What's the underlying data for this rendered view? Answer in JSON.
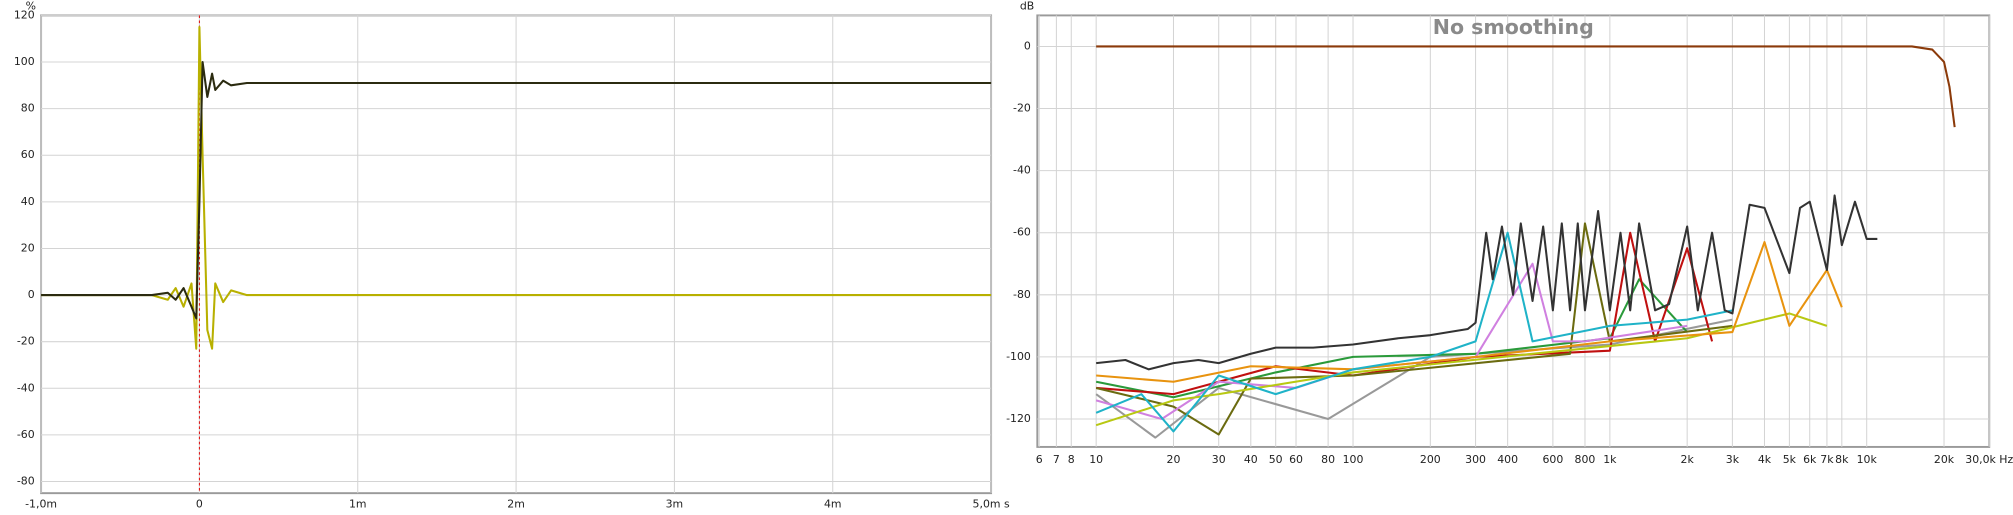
{
  "chart_data": [
    {
      "type": "line",
      "ylabel": "%",
      "xlim": [
        -1,
        5
      ],
      "ylim": [
        -85,
        120
      ],
      "xticks": [
        {
          "value": -1,
          "label": "-1,0m"
        },
        0,
        {
          "value": 1,
          "label": "1m"
        },
        {
          "value": 2,
          "label": "2m"
        },
        {
          "value": 3,
          "label": "3m"
        },
        {
          "value": 4,
          "label": "4m"
        },
        {
          "value": 5,
          "label": "5,0m s"
        }
      ],
      "yticks": [
        -80,
        -60,
        -40,
        -20,
        0,
        20,
        40,
        60,
        80,
        100,
        120
      ],
      "grid": true,
      "series": [
        {
          "color": "#b8b000",
          "x": [
            -1,
            -0.3,
            -0.2,
            -0.15,
            -0.1,
            -0.05,
            -0.02,
            0,
            0.02,
            0.05,
            0.08,
            0.1,
            0.15,
            0.2,
            0.3,
            5
          ],
          "values": [
            0,
            0,
            -2,
            3,
            -5,
            5,
            -23,
            115,
            60,
            -15,
            -23,
            5,
            -3,
            2,
            0,
            0
          ]
        },
        {
          "color": "#2b2b10",
          "x": [
            -1,
            -0.3,
            -0.2,
            -0.15,
            -0.1,
            -0.05,
            -0.02,
            0,
            0.02,
            0.05,
            0.08,
            0.1,
            0.15,
            0.2,
            0.3,
            5
          ],
          "values": [
            0,
            0,
            1,
            -2,
            3,
            -5,
            -10,
            40,
            100,
            85,
            95,
            88,
            92,
            90,
            91,
            91
          ]
        }
      ]
    },
    {
      "type": "line",
      "title": "No smoothing",
      "ylabel": "dB",
      "xscale": "log",
      "xlim": [
        5.9,
        30000
      ],
      "ylim": [
        -129,
        10
      ],
      "xticks": [
        6,
        7,
        8,
        10,
        20,
        30,
        40,
        50,
        60,
        80,
        100,
        200,
        300,
        400,
        600,
        800,
        {
          "value": 1000,
          "label": "1k"
        },
        {
          "value": 2000,
          "label": "2k"
        },
        {
          "value": 3000,
          "label": "3k"
        },
        {
          "value": 4000,
          "label": "4k"
        },
        {
          "value": 5000,
          "label": "5k"
        },
        {
          "value": 6000,
          "label": "6k"
        },
        {
          "value": 7000,
          "label": "7k"
        },
        {
          "value": 8000,
          "label": "8k"
        },
        {
          "value": 10000,
          "label": "10k"
        },
        {
          "value": 20000,
          "label": "20k"
        },
        {
          "value": 30000,
          "label": "30,0k Hz"
        }
      ],
      "yticks": [
        -120,
        -100,
        -80,
        -60,
        -40,
        -20,
        0
      ],
      "grid": true,
      "series": [
        {
          "color": "#999999",
          "x": [
            10,
            17,
            30,
            80,
            200,
            1000,
            3000
          ],
          "values": [
            -112,
            -126,
            -110,
            -120,
            -100,
            -96,
            -88
          ]
        },
        {
          "color": "#2a9a3a",
          "x": [
            10,
            20,
            50,
            100,
            300,
            1000,
            1300,
            2000
          ],
          "values": [
            -108,
            -113,
            -105,
            -100,
            -99,
            -94,
            -75,
            -92
          ]
        },
        {
          "color": "#c01010",
          "x": [
            10,
            20,
            50,
            100,
            300,
            1000,
            1200,
            1500,
            2000,
            2500
          ],
          "values": [
            -110,
            -112,
            -103,
            -106,
            -100,
            -98,
            -60,
            -95,
            -65,
            -95
          ]
        },
        {
          "color": "#6b6b10",
          "x": [
            10,
            20,
            30,
            40,
            100,
            700,
            800,
            1000,
            3000
          ],
          "values": [
            -110,
            -116,
            -125,
            -107,
            -106,
            -99,
            -57,
            -95,
            -90
          ]
        },
        {
          "color": "#d080e0",
          "x": [
            10,
            18,
            30,
            60,
            100,
            300,
            500,
            600,
            800,
            2000
          ],
          "values": [
            -114,
            -120,
            -108,
            -110,
            -104,
            -100,
            -70,
            -95,
            -95,
            -90
          ]
        },
        {
          "color": "#b8c812",
          "x": [
            10,
            20,
            30,
            100,
            500,
            2000,
            5000,
            7000
          ],
          "values": [
            -122,
            -114,
            -112,
            -105,
            -99,
            -94,
            -86,
            -90
          ]
        },
        {
          "color": "#e8930f",
          "x": [
            10,
            20,
            40,
            100,
            300,
            1000,
            3000,
            4000,
            5000,
            7000,
            8000
          ],
          "values": [
            -106,
            -108,
            -103,
            -104,
            -100,
            -95,
            -92,
            -63,
            -90,
            -72,
            -84
          ]
        },
        {
          "color": "#1fb3c8",
          "x": [
            10,
            15,
            20,
            30,
            50,
            100,
            200,
            300,
            400,
            500,
            1000,
            2000,
            3000
          ],
          "values": [
            -118,
            -112,
            -124,
            -106,
            -112,
            -104,
            -100,
            -95,
            -60,
            -95,
            -90,
            -88,
            -85
          ]
        },
        {
          "color": "#333333",
          "x": [
            10,
            13,
            16,
            20,
            25,
            30,
            40,
            50,
            70,
            100,
            150,
            200,
            280,
            300,
            330,
            350,
            380,
            420,
            450,
            500,
            550,
            600,
            650,
            700,
            750,
            800,
            900,
            1000,
            1100,
            1200,
            1300,
            1500,
            1700,
            2000,
            2200,
            2500,
            2800,
            3000,
            3500,
            4000,
            5000,
            5500,
            6000,
            7000,
            7500,
            8000,
            9000,
            10000,
            11000
          ],
          "values": [
            -102,
            -101,
            -104,
            -102,
            -101,
            -102,
            -99,
            -97,
            -97,
            -96,
            -94,
            -93,
            -91,
            -89,
            -60,
            -75,
            -58,
            -80,
            -57,
            -82,
            -58,
            -85,
            -57,
            -85,
            -57,
            -85,
            -53,
            -85,
            -60,
            -85,
            -57,
            -85,
            -83,
            -58,
            -85,
            -60,
            -85,
            -86,
            -51,
            -52,
            -73,
            -52,
            -50,
            -72,
            -48,
            -64,
            -50,
            -62,
            -62
          ]
        },
        {
          "color": "#8b3a0a",
          "x": [
            10,
            100,
            1000,
            10000,
            15000,
            18000,
            20000,
            21000,
            22000
          ],
          "values": [
            0,
            0,
            0,
            0,
            0,
            -1,
            -5,
            -13,
            -26
          ]
        }
      ]
    }
  ]
}
